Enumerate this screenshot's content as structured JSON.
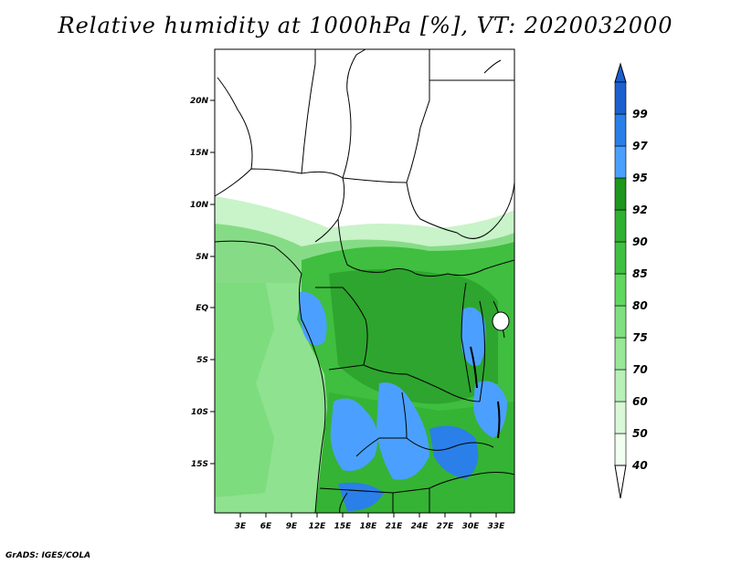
{
  "title": "Relative humidity at 1000hPa [%], VT: 2020032000",
  "credit": "GrADS: IGES/COLA",
  "map": {
    "region_lon": [
      0,
      35
    ],
    "region_lat": [
      -20,
      25
    ],
    "lat_ticks": [
      "20N",
      "15N",
      "10N",
      "5N",
      "EQ",
      "5S",
      "10S",
      "15S"
    ],
    "lon_ticks": [
      "3E",
      "6E",
      "9E",
      "12E",
      "15E",
      "18E",
      "21E",
      "24E",
      "27E",
      "30E",
      "33E"
    ]
  },
  "colorbar": {
    "labels": [
      "40",
      "50",
      "60",
      "70",
      "75",
      "80",
      "85",
      "90",
      "92",
      "95",
      "97",
      "99"
    ],
    "colors": [
      "#f0fff0",
      "#d8f8d8",
      "#b8f0b8",
      "#98e898",
      "#80e080",
      "#60d860",
      "#40c040",
      "#30b030",
      "#1c961c",
      "#4ba0ff",
      "#2b7fe8",
      "#1c5fcf"
    ],
    "over_color": "#1c5fcf",
    "under_color": "#ffffff"
  }
}
